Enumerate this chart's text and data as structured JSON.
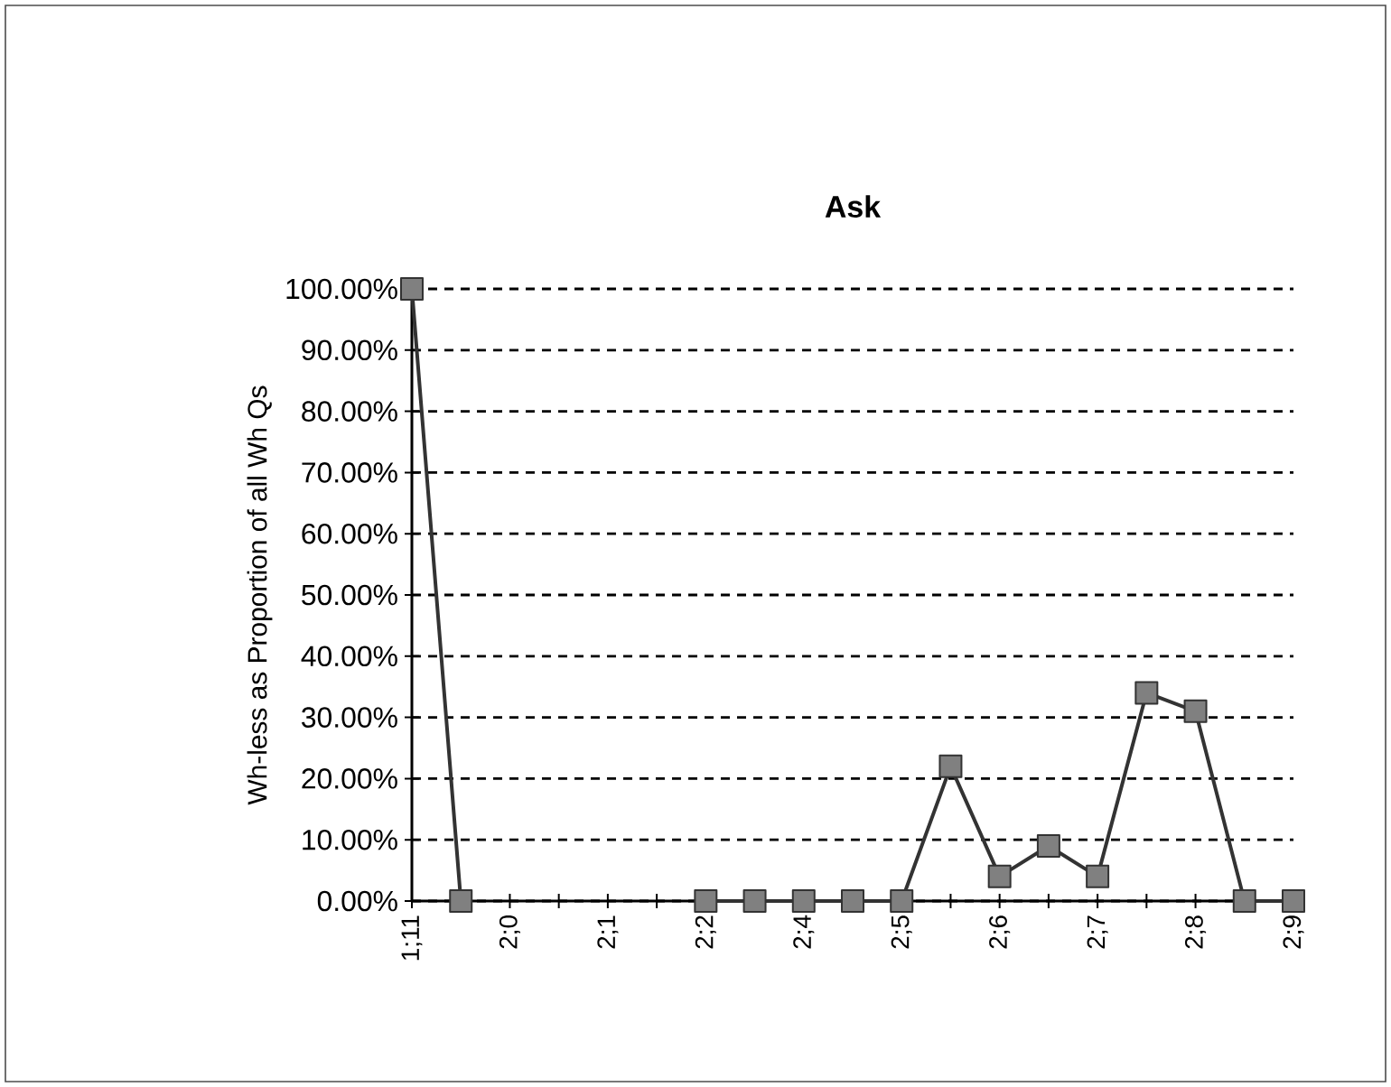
{
  "chart_data": {
    "type": "line",
    "title": "Ask",
    "ylabel": "Wh-less as Proportion of all Wh Qs",
    "categories": [
      "1;11",
      null,
      "2;0",
      null,
      "2;1",
      null,
      "2;2",
      null,
      "2;4",
      null,
      "2;5",
      null,
      "2;6",
      null,
      "2;7",
      null,
      "2;8",
      null,
      "2;9"
    ],
    "series": [
      {
        "color": "#333333",
        "values": [
          100,
          0,
          null,
          null,
          null,
          null,
          0,
          0,
          0,
          0,
          0,
          22,
          4,
          9,
          4,
          34,
          31,
          0,
          0
        ]
      }
    ],
    "ylim": [
      0,
      100
    ],
    "yticks": [
      {
        "value": 0,
        "label": "0.00%"
      },
      {
        "value": 10,
        "label": "10.00%"
      },
      {
        "value": 20,
        "label": "20.00%"
      },
      {
        "value": 30,
        "label": "30.00%"
      },
      {
        "value": 40,
        "label": "40.00%"
      },
      {
        "value": 50,
        "label": "50.00%"
      },
      {
        "value": 60,
        "label": "60.00%"
      },
      {
        "value": 70,
        "label": "70.00%"
      },
      {
        "value": 80,
        "label": "80.00%"
      },
      {
        "value": 90,
        "label": "90.00%"
      },
      {
        "value": 100,
        "label": "100.00%"
      }
    ],
    "grid": "y",
    "marker": "square",
    "line_style": "solid"
  }
}
